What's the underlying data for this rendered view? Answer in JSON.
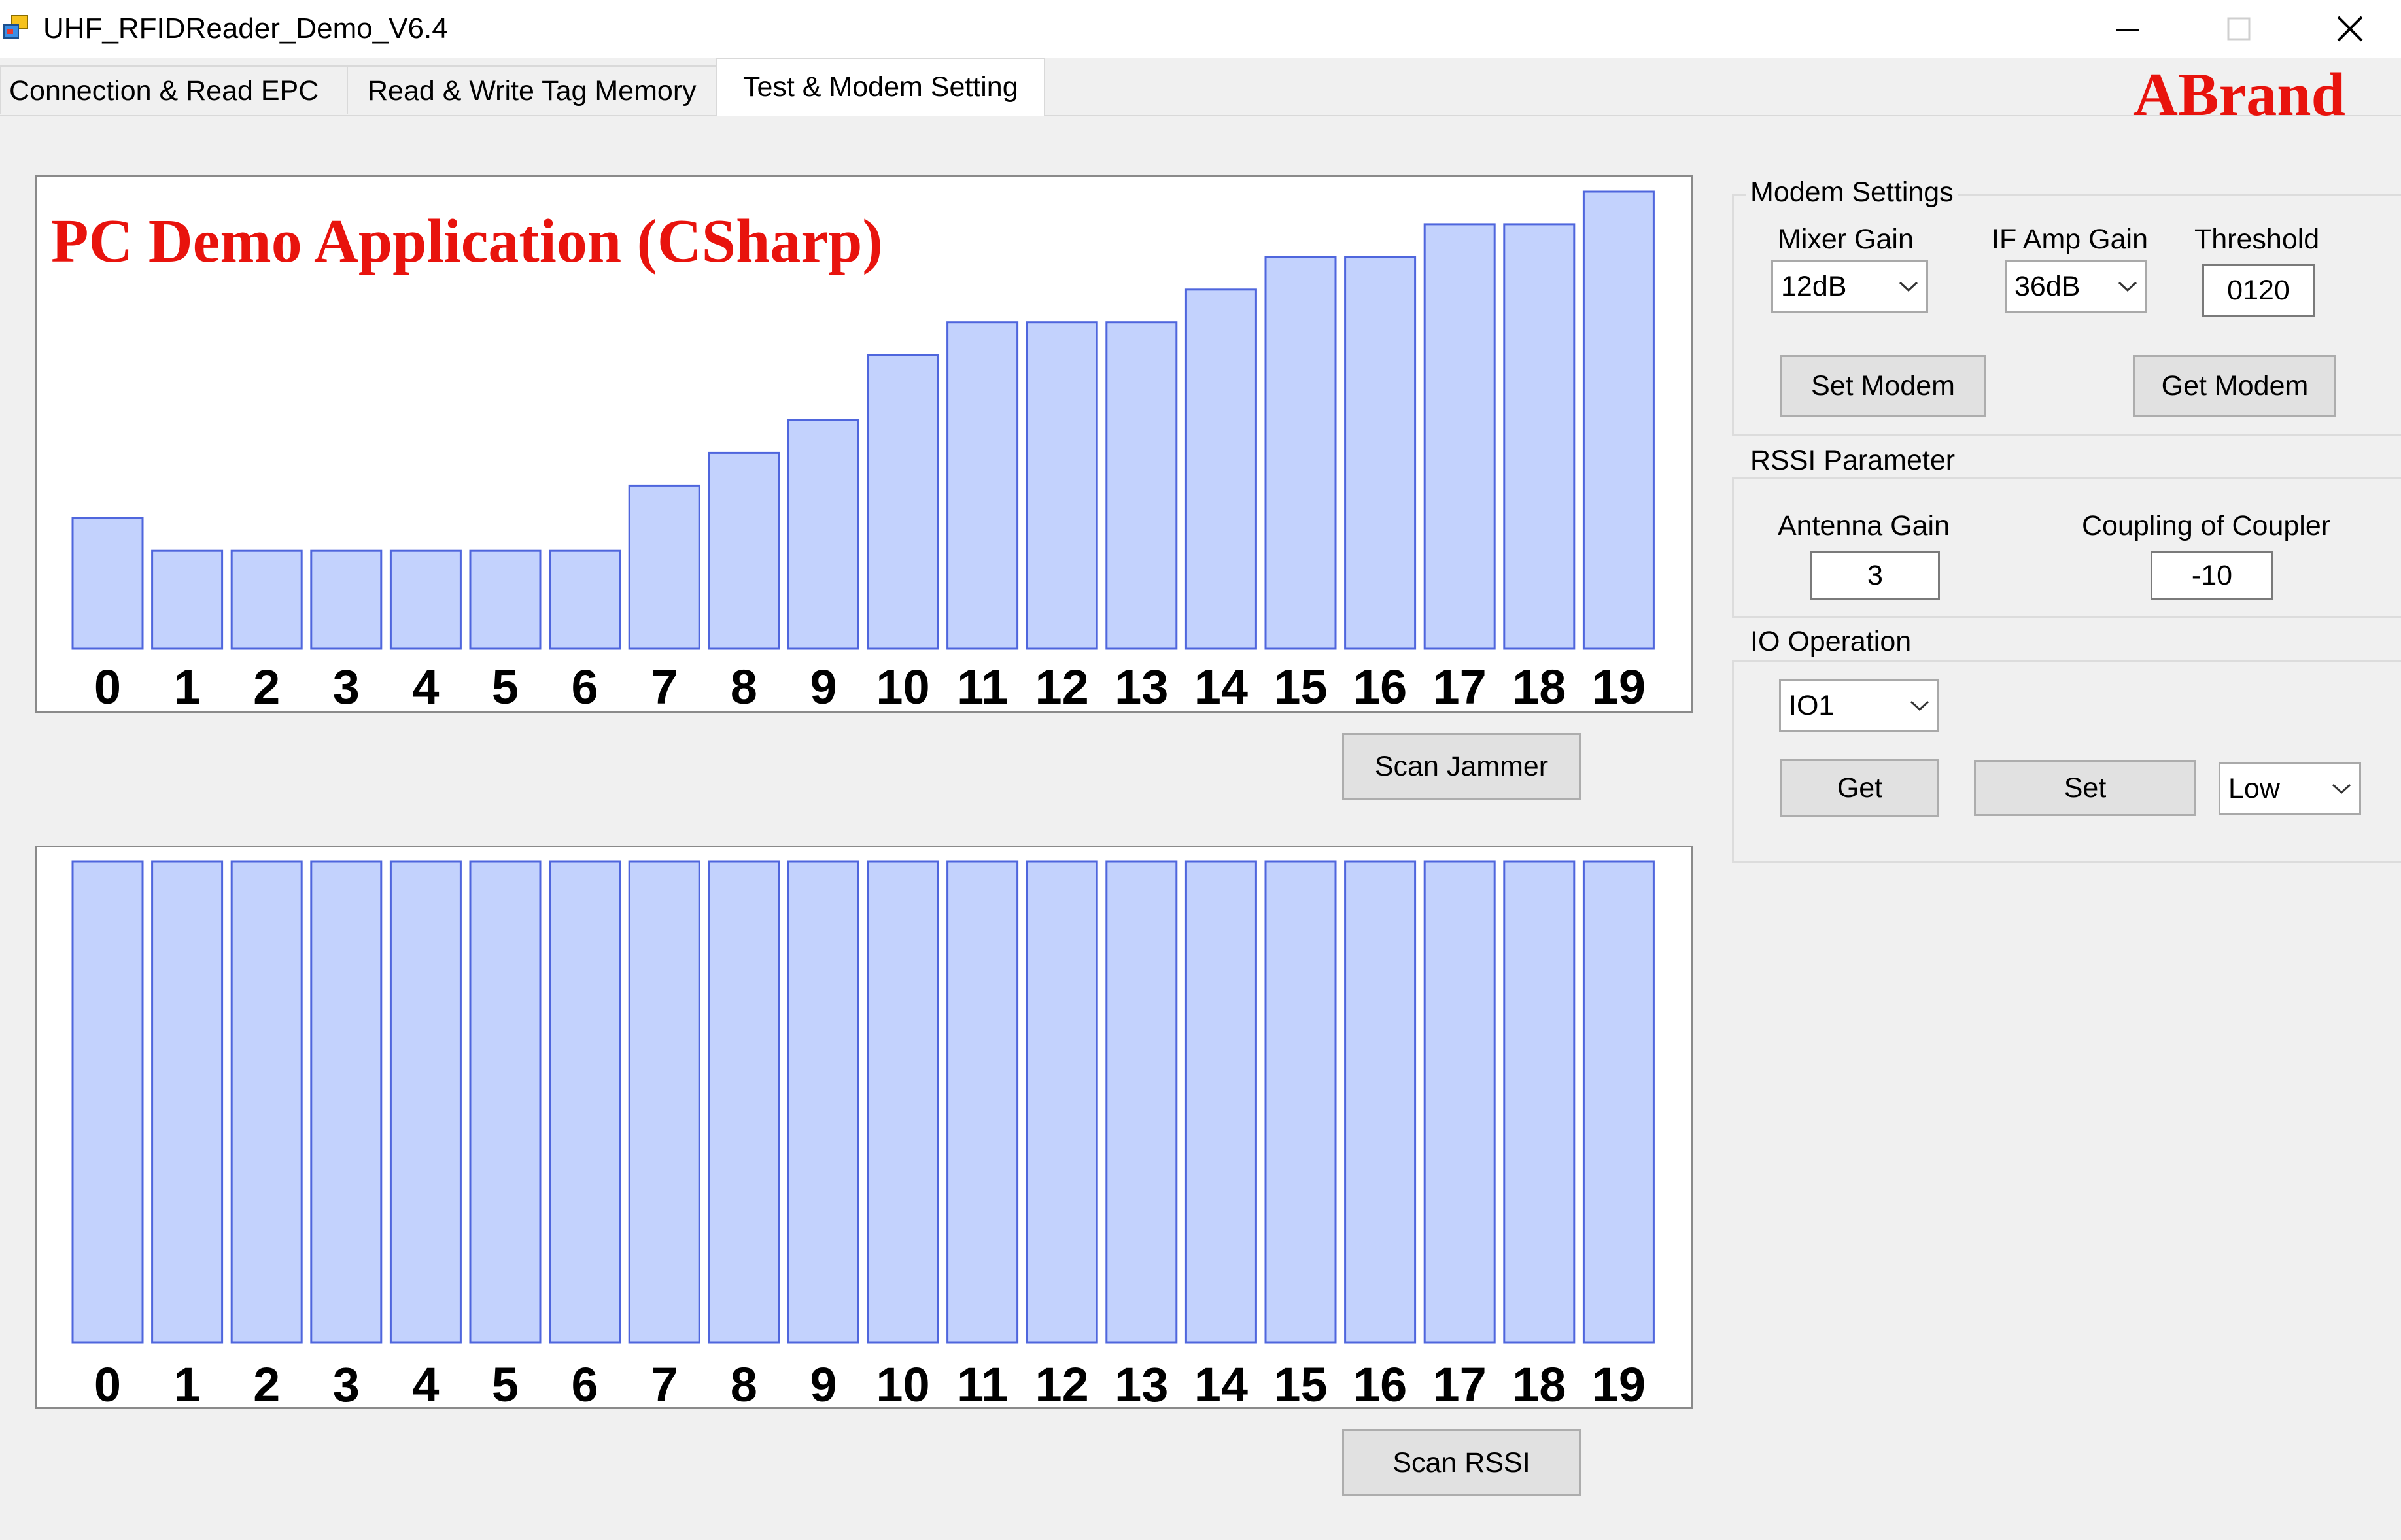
{
  "window": {
    "title": "UHF_RFIDReader_Demo_V6.4",
    "controls": {
      "minimize": "minimize-icon",
      "maximize": "maximize-icon",
      "close": "close-icon"
    }
  },
  "tabs": [
    {
      "label": "Connection & Read EPC",
      "active": false
    },
    {
      "label": "Read & Write Tag Memory",
      "active": false
    },
    {
      "label": "Test & Modem Setting",
      "active": true
    }
  ],
  "brand": "ABrand",
  "overlay_title": "PC Demo Application (CSharp)",
  "jammer": {
    "button": "Scan Jammer"
  },
  "rssi": {
    "button": "Scan RSSI"
  },
  "chart_data": [
    {
      "type": "bar",
      "categories": [
        "0",
        "1",
        "2",
        "3",
        "4",
        "5",
        "6",
        "7",
        "8",
        "9",
        "10",
        "11",
        "12",
        "13",
        "14",
        "15",
        "16",
        "17",
        "18",
        "19"
      ],
      "values": [
        4,
        3,
        3,
        3,
        3,
        3,
        3,
        5,
        6,
        7,
        9,
        10,
        10,
        10,
        11,
        12,
        12,
        13,
        13,
        14
      ],
      "ylim": [
        0,
        14
      ],
      "grid": false,
      "legend": "none",
      "colors": {
        "fill": "#c3d2fd",
        "stroke": "#4f66dd"
      }
    },
    {
      "type": "bar",
      "categories": [
        "0",
        "1",
        "2",
        "3",
        "4",
        "5",
        "6",
        "7",
        "8",
        "9",
        "10",
        "11",
        "12",
        "13",
        "14",
        "15",
        "16",
        "17",
        "18",
        "19"
      ],
      "values": [
        15,
        15,
        15,
        15,
        15,
        15,
        15,
        15,
        15,
        15,
        15,
        15,
        15,
        15,
        15,
        15,
        15,
        15,
        15,
        15
      ],
      "ylim": [
        0,
        15
      ],
      "grid": false,
      "legend": "none",
      "colors": {
        "fill": "#c3d2fd",
        "stroke": "#4f66dd"
      }
    }
  ],
  "modem": {
    "title": "Modem Settings",
    "mixer_label": "Mixer Gain",
    "mixer_value": "12dB",
    "ifamp_label": "IF Amp Gain",
    "ifamp_value": "36dB",
    "threshold_label": "Threshold",
    "threshold_value": "0120",
    "set_button": "Set Modem",
    "get_button": "Get Modem"
  },
  "rssi_param": {
    "title": "RSSI Parameter",
    "antenna_label": "Antenna Gain",
    "antenna_value": "3",
    "coupler_label": "Coupling of Coupler",
    "coupler_value": "-10"
  },
  "io": {
    "title": "IO Operation",
    "port_value": "IO1",
    "get_button": "Get",
    "set_button": "Set",
    "level_value": "Low"
  }
}
